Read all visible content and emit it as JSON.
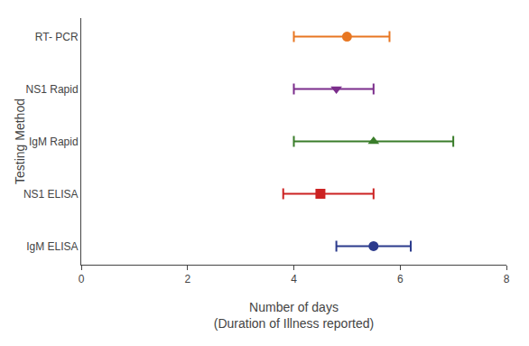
{
  "chart_data": {
    "type": "errorbar",
    "orientation": "horizontal",
    "categories": [
      "RT- PCR",
      "NS1 Rapid",
      "IgM Rapid",
      "NS1 ELISA",
      "IgM ELISA"
    ],
    "values": [
      5.0,
      4.8,
      5.5,
      4.5,
      5.5
    ],
    "err_minus": [
      1.0,
      0.8,
      1.5,
      0.7,
      0.7
    ],
    "err_plus": [
      0.8,
      0.7,
      1.5,
      1.0,
      0.7
    ],
    "colors": [
      "#E87722",
      "#7B2D8B",
      "#3A7D2A",
      "#CC2222",
      "#2B3A8C"
    ],
    "markers": [
      "circle",
      "triangle-down",
      "triangle-up",
      "square",
      "circle"
    ],
    "xlabel": "Number of days\n(Duration of Illness reported)",
    "ylabel": "Testing Method",
    "xlim": [
      0,
      8
    ],
    "xticks": [
      0,
      2,
      4,
      6,
      8
    ],
    "grid": false
  }
}
